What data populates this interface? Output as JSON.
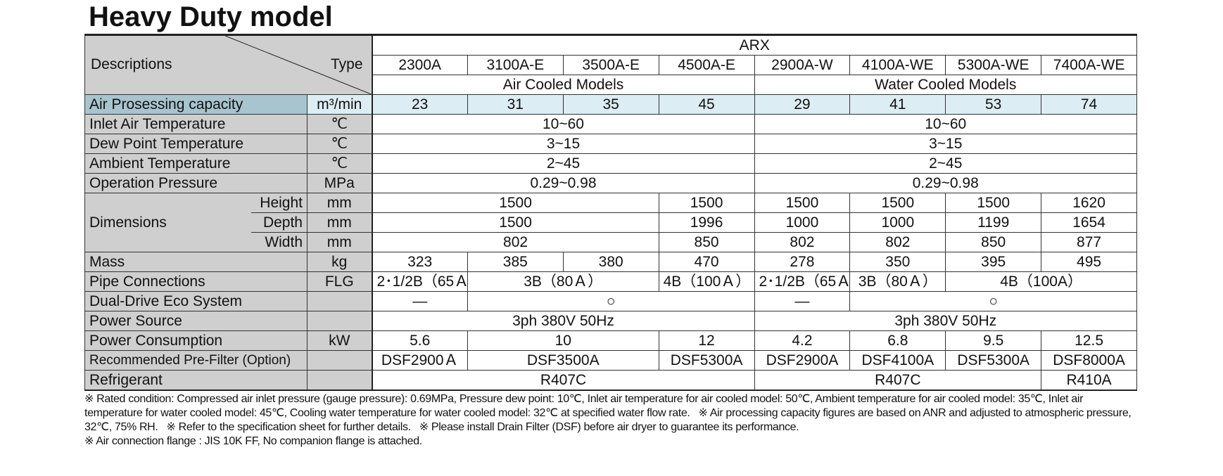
{
  "header": {
    "title": "Heavy Duty model"
  },
  "table": {
    "corner": {
      "descriptions": "Descriptions",
      "type": "Type"
    },
    "series": "ARX",
    "models": [
      "2300A",
      "3100A-E",
      "3500A-E",
      "4500A-E",
      "2900A-W",
      "4100A-WE",
      "5300A-WE",
      "7400A-WE"
    ],
    "groups": [
      "Air Cooled Models",
      "Water Cooled Models"
    ],
    "rows": [
      {
        "label": "Air Prosessing capacity",
        "unit": "m³/min",
        "values": [
          23,
          31,
          35,
          45,
          29,
          41,
          53,
          74
        ]
      },
      {
        "label": "Inlet Air Temperature",
        "unit": "℃",
        "values": [
          "10~60",
          "10~60"
        ]
      },
      {
        "label": "Dew Point Temperature",
        "unit": "℃",
        "values": [
          "3~15",
          "3~15"
        ]
      },
      {
        "label": "Ambient Temperature",
        "unit": "℃",
        "values": [
          "2~45",
          "2~45"
        ]
      },
      {
        "label": "Operation Pressure",
        "unit": "MPa",
        "values": [
          "0.29~0.98",
          "0.29~0.98"
        ]
      },
      {
        "label": "Dimensions",
        "parts": [
          {
            "sub": "Height",
            "unit": "mm",
            "values": [
              1500,
              1500,
              1500,
              1500,
              1500,
              1620
            ]
          },
          {
            "sub": "Depth",
            "unit": "mm",
            "values": [
              1500,
              1996,
              1000,
              1000,
              1199,
              1654
            ]
          },
          {
            "sub": "Width",
            "unit": "mm",
            "values": [
              802,
              850,
              802,
              802,
              850,
              877
            ]
          }
        ]
      },
      {
        "label": "Mass",
        "unit": "kg",
        "values": [
          323,
          385,
          380,
          470,
          278,
          350,
          395,
          495
        ]
      },
      {
        "label": "Pipe Connections",
        "unit": "FLG",
        "values": [
          "2･1/2B（65Ａ）",
          "3B（80Ａ）",
          "4B（100Ａ）",
          "2･1/2B（65Ａ）",
          "3B（80Ａ）",
          "4B（100A）"
        ]
      },
      {
        "label": "Dual-Drive Eco System",
        "values": [
          "—",
          "○",
          "—",
          "○"
        ]
      },
      {
        "label": "Power Source",
        "values": [
          "3ph 380V 50Hz",
          "3ph 380V 50Hz"
        ]
      },
      {
        "label": "Power Consumption",
        "unit": "kW",
        "values": [
          5.6,
          10,
          12,
          4.2,
          6.8,
          9.5,
          12.5
        ]
      },
      {
        "label": "Recommended Pre-Filter (Option)",
        "values": [
          "DSF2900Ａ",
          "DSF3500A",
          "DSF5300A",
          "DSF2900A",
          "DSF4100A",
          "DSF5300A",
          "DSF8000A"
        ]
      },
      {
        "label": "Refrigerant",
        "values": [
          "R407C",
          "R407C",
          "R410A"
        ]
      }
    ]
  },
  "notes": [
    "※ Rated condition: Compressed air inlet pressure (gauge pressure): 0.69MPa, Pressure dew point: 10℃, Inlet air temperature for air cooled model: 50℃, Ambient temperature for air cooled model: 35℃,  Inlet air temperature for water cooled model: 45℃, Cooling water temperature for water cooled model: 32℃ at specified water flow rate.",
    "※ Air processing capacity figures are based on ANR and adjusted to atmospheric pressure, 32℃, 75% RH.",
    "※ Refer to the specification sheet for further details.",
    "※ Please install Drain Filter (DSF) before  air dryer to guarantee its performance.",
    "※ Air connection flange : JIS 10K FF, No companion flange is attached."
  ]
}
